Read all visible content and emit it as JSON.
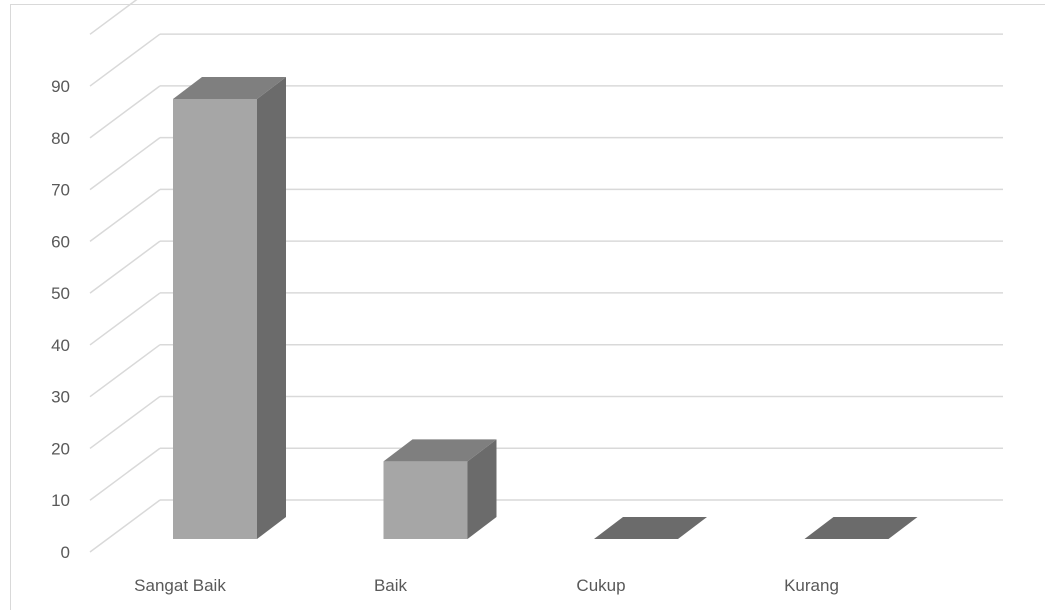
{
  "chart_data": {
    "type": "bar",
    "style": "3d-column",
    "categories": [
      "Sangat Baik",
      "Baik",
      "Cukup",
      "Kurang"
    ],
    "values": [
      85,
      15,
      0,
      0
    ],
    "yticks": [
      0,
      10,
      20,
      30,
      40,
      50,
      60,
      70,
      80,
      90
    ],
    "ylim": [
      0,
      100
    ],
    "grid": true,
    "legend": "none",
    "colors": {
      "front": "#a6a6a6",
      "top": "#7f7f7f",
      "side": "#6b6b6b",
      "grid": "#d9d9d9",
      "text": "#595959"
    }
  }
}
